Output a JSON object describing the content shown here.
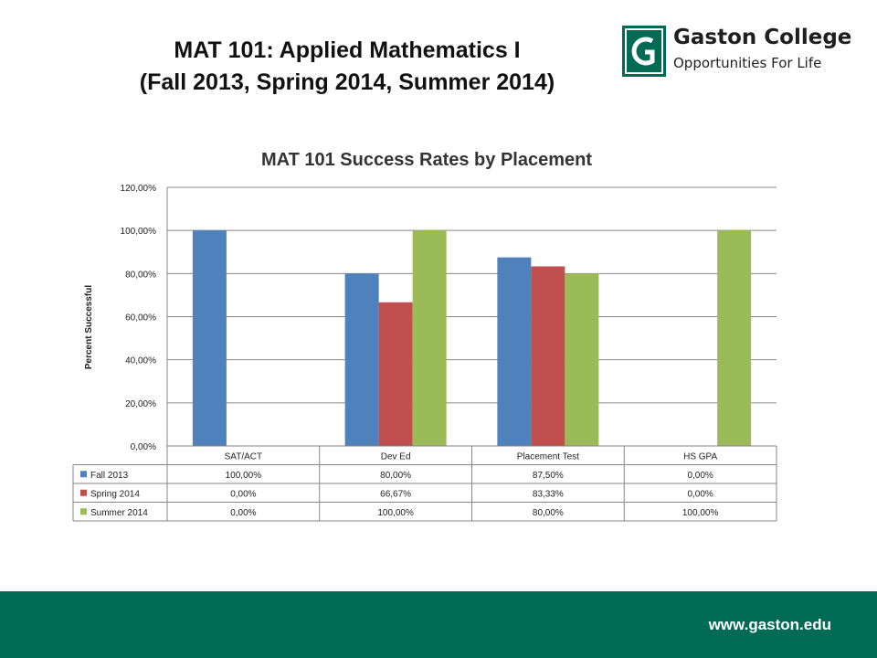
{
  "slide": {
    "title_line1": "MAT 101:  Applied Mathematics I",
    "title_line2": "(Fall 2013, Spring 2014, Summer 2014)"
  },
  "logo": {
    "mark_text": "G",
    "name": "Gaston College",
    "tagline": "Opportunities For Life",
    "color": "#006b54"
  },
  "footer": {
    "url": "www.gaston.edu",
    "color": "#006b54"
  },
  "chart_data": {
    "type": "bar",
    "title": "MAT 101 Success Rates by Placement",
    "xlabel": "",
    "ylabel": "Percent Successful",
    "categories": [
      "SAT/ACT",
      "Dev Ed",
      "Placement Test",
      "HS GPA"
    ],
    "series": [
      {
        "name": "Fall 2013",
        "color": "#4f81bd",
        "values": [
          100.0,
          80.0,
          87.5,
          0.0
        ],
        "labels": [
          "100,00%",
          "80,00%",
          "87,50%",
          "0,00%"
        ]
      },
      {
        "name": "Spring 2014",
        "color": "#c0504d",
        "values": [
          0.0,
          66.67,
          83.33,
          0.0
        ],
        "labels": [
          "0,00%",
          "66,67%",
          "83,33%",
          "0,00%"
        ]
      },
      {
        "name": "Summer 2014",
        "color": "#9bbb59",
        "values": [
          0.0,
          100.0,
          80.0,
          100.0
        ],
        "labels": [
          "0,00%",
          "100,00%",
          "80,00%",
          "100,00%"
        ]
      }
    ],
    "ylim": [
      0,
      120
    ],
    "yticks": [
      0,
      20,
      40,
      60,
      80,
      100,
      120
    ],
    "ytick_labels": [
      "0,00%",
      "20,00%",
      "40,00%",
      "60,00%",
      "80,00%",
      "100,00%",
      "120,00%"
    ],
    "grid": true,
    "legend": "data-table-left"
  }
}
